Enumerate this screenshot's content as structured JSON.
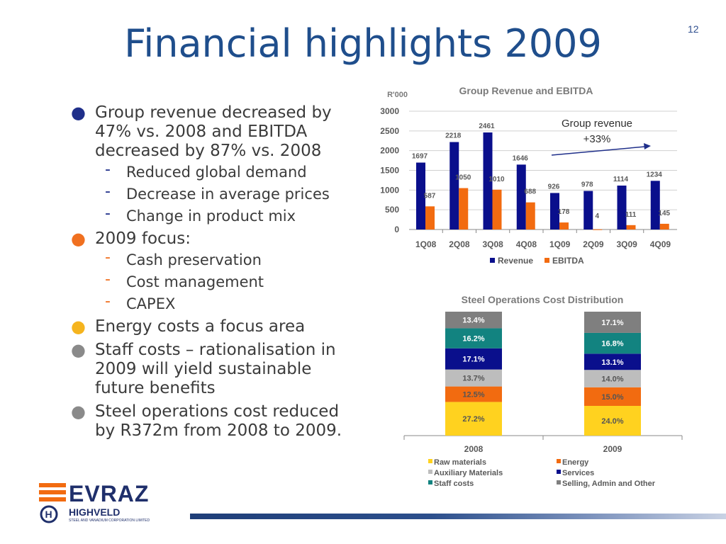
{
  "page_number": "12",
  "title": "Financial highlights 2009",
  "bullets": [
    {
      "text": "Group revenue decreased by 47% vs. 2008 and EBITDA decreased by 87% vs. 2008",
      "bullet_color": "#1f2f8a",
      "subs": [
        "Reduced global demand",
        "Decrease in average prices",
        "Change in product mix"
      ],
      "sub_color": "#1f2f8a"
    },
    {
      "text": "2009 focus:",
      "bullet_color": "#f07020",
      "subs": [
        "Cash preservation",
        "Cost management",
        "CAPEX"
      ],
      "sub_color": "#f07020"
    },
    {
      "text": "Energy costs a focus area",
      "bullet_color": "#f5b41e",
      "subs": []
    },
    {
      "text": "Staff costs – rationalisation in 2009 will yield sustainable future benefits",
      "bullet_color": "#8a8a8a",
      "subs": []
    },
    {
      "text": "Steel operations cost reduced by R372m from 2008 to 2009.",
      "bullet_color": "#8a8a8a",
      "subs": []
    }
  ],
  "chart_data": [
    {
      "type": "bar",
      "title": "Group Revenue and EBITDA",
      "ylabel": "R'000",
      "categories": [
        "1Q08",
        "2Q08",
        "3Q08",
        "4Q08",
        "1Q09",
        "2Q09",
        "3Q09",
        "4Q09"
      ],
      "series": [
        {
          "name": "Revenue",
          "color": "#0a0f8c",
          "values": [
            1697,
            2218,
            2461,
            1646,
            926,
            978,
            1114,
            1234
          ]
        },
        {
          "name": "EBITDA",
          "color": "#f26b10",
          "values": [
            587,
            1050,
            1010,
            688,
            178,
            4,
            111,
            145
          ]
        }
      ],
      "value_labels": {
        "Revenue": [
          "1697",
          "2218",
          "2461",
          "1646",
          "926",
          "978",
          "1114",
          "1234"
        ],
        "EBITDA": [
          "587",
          "1050",
          "1010",
          "688",
          "178",
          "4",
          "111",
          "145"
        ]
      },
      "ylim": [
        0,
        3000
      ],
      "yticks": [
        0,
        500,
        1000,
        1500,
        2000,
        2500,
        3000
      ],
      "grid": true,
      "legend": "bottom",
      "annotation": {
        "line1": "Group revenue",
        "line2": "+33%"
      }
    },
    {
      "type": "bar",
      "stacked": true,
      "title": "Steel Operations Cost Distribution",
      "categories": [
        "2008",
        "2009"
      ],
      "series": [
        {
          "name": "Raw materials",
          "color": "#ffd21f",
          "text_color": "#555555",
          "values": [
            27.2,
            24.0
          ],
          "labels": [
            "27.2%",
            "24.0%"
          ]
        },
        {
          "name": "Energy",
          "color": "#f26b10",
          "text_color": "#555555",
          "values": [
            12.5,
            15.0
          ],
          "labels": [
            "12.5%",
            "15.0%"
          ]
        },
        {
          "name": "Auxiliary Materials",
          "color": "#bdbdbd",
          "text_color": "#555555",
          "values": [
            13.7,
            14.0
          ],
          "labels": [
            "13.7%",
            "14.0%"
          ]
        },
        {
          "name": "Services",
          "color": "#0a0f8c",
          "text_color": "#ffffff",
          "values": [
            17.1,
            13.1
          ],
          "labels": [
            "17.1%",
            "13.1%"
          ]
        },
        {
          "name": "Staff costs",
          "color": "#128380",
          "text_color": "#ffffff",
          "values": [
            16.2,
            16.8
          ],
          "labels": [
            "16.2%",
            "16.8%"
          ]
        },
        {
          "name": "Selling, Admin and Other",
          "color": "#7f7f7f",
          "text_color": "#ffffff",
          "values": [
            13.4,
            17.1
          ],
          "labels": [
            "13.4%",
            "17.1%"
          ]
        }
      ],
      "legend_order": [
        "Raw materials",
        "Energy",
        "Auxiliary Materials",
        "Services",
        "Staff costs",
        "Selling, Admin and Other"
      ],
      "legend": "bottom"
    }
  ],
  "logo": {
    "brand": "EVRAZ",
    "sub_brand": "HIGHVELD",
    "tagline": "STEEL AND VANADIUM CORPORATION LIMITED",
    "colors": {
      "stripe": "#f26b10",
      "text": "#1f2f6b"
    }
  }
}
